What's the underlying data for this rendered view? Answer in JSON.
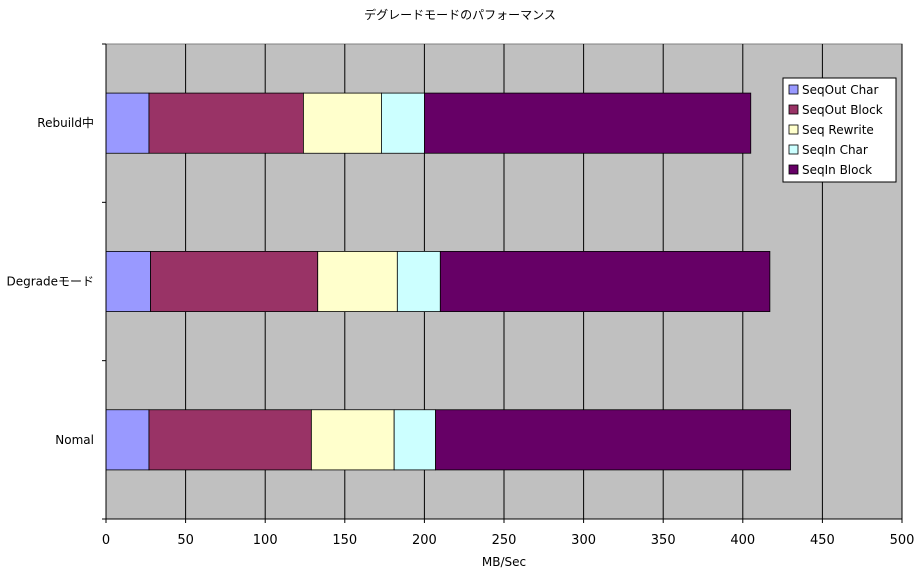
{
  "chart_data": {
    "type": "bar",
    "orientation": "horizontal",
    "stacked": true,
    "title": "デグレードモードのパフォーマンス",
    "xlabel": "MB/Sec",
    "ylabel": "",
    "xlim": [
      0,
      500
    ],
    "xticks": [
      0,
      50,
      100,
      150,
      200,
      250,
      300,
      350,
      400,
      450,
      500
    ],
    "grid": true,
    "legend_position": "top-right",
    "categories": [
      "Nomal",
      "Degradeモード",
      "Rebuild中"
    ],
    "series": [
      {
        "name": "SeqOut Char",
        "color": "#9999FF",
        "values": [
          27,
          28,
          27
        ]
      },
      {
        "name": "SeqOut Block",
        "color": "#993366",
        "values": [
          102,
          105,
          97
        ]
      },
      {
        "name": "Seq Rewrite",
        "color": "#FFFFCC",
        "values": [
          52,
          50,
          49
        ]
      },
      {
        "name": "SeqIn Char",
        "color": "#CCFFFF",
        "values": [
          26,
          27,
          27
        ]
      },
      {
        "name": "SeqIn Block",
        "color": "#660066",
        "values": [
          223,
          207,
          205
        ]
      }
    ],
    "plot_background": "#C0C0C0"
  }
}
